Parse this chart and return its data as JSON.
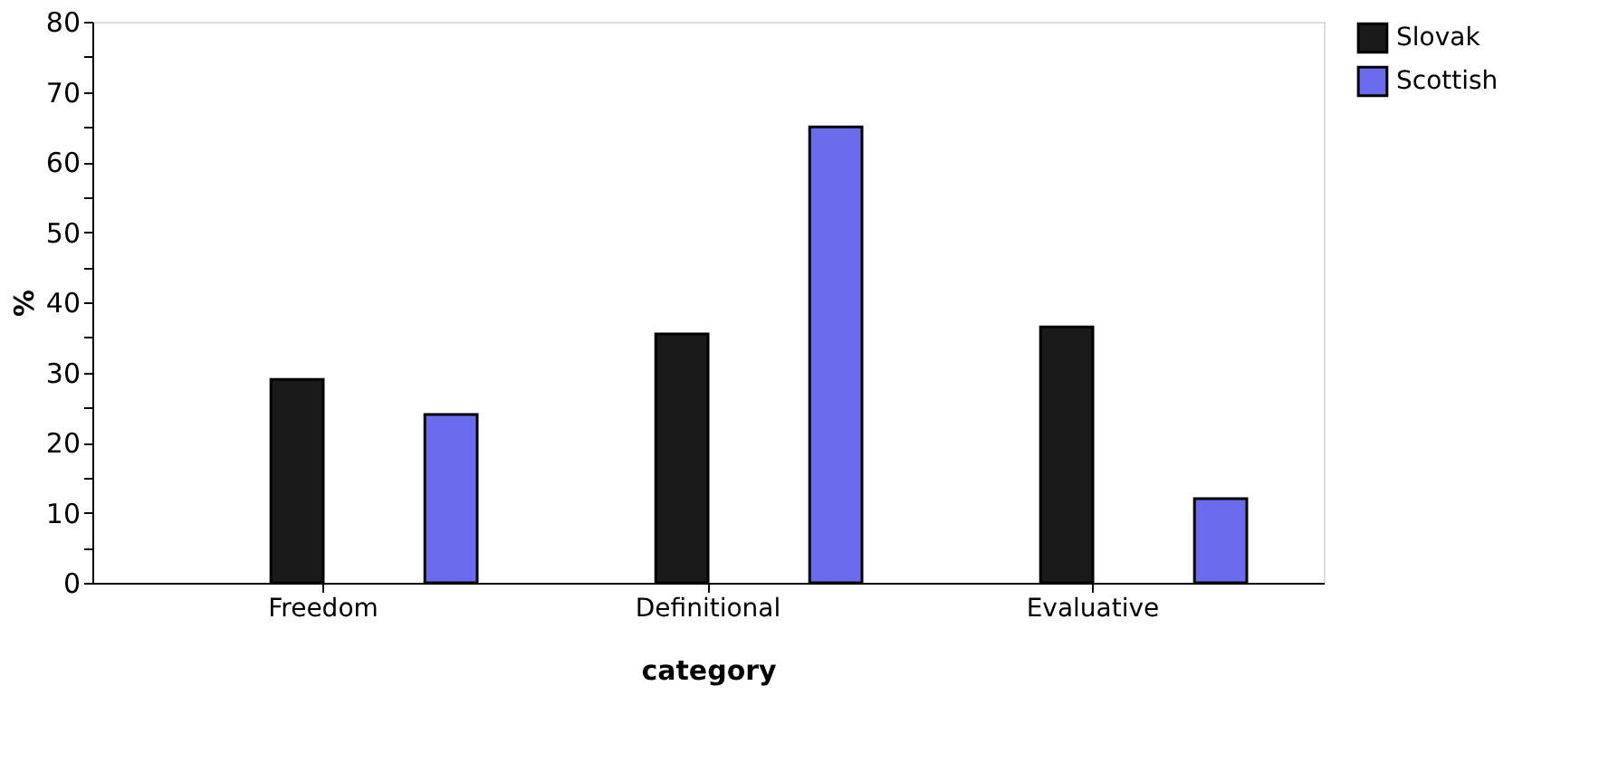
{
  "chart_data": {
    "type": "bar",
    "xlabel": "category",
    "ylabel": "%",
    "categories": [
      "Freedom",
      "Definitional",
      "Evaluative"
    ],
    "series": [
      {
        "name": "Slovak",
        "color": "#1a1a1a",
        "values": [
          29,
          35.5,
          36.5
        ]
      },
      {
        "name": "Scottish",
        "color": "#6b6bee",
        "values": [
          24,
          65,
          12
        ]
      }
    ],
    "ylim": [
      0,
      80
    ],
    "yticks": [
      0,
      {
        "value": 5,
        "label": null
      },
      10,
      {
        "value": 15,
        "label": null
      },
      20,
      {
        "value": 25,
        "label": null
      },
      30,
      {
        "value": 35,
        "label": null
      },
      40,
      {
        "value": 45,
        "label": null
      },
      50,
      {
        "value": 55,
        "label": null
      },
      60,
      {
        "value": 65,
        "label": null
      },
      70,
      {
        "value": 75,
        "label": null
      },
      80
    ],
    "grid": false,
    "legend": "top right"
  }
}
